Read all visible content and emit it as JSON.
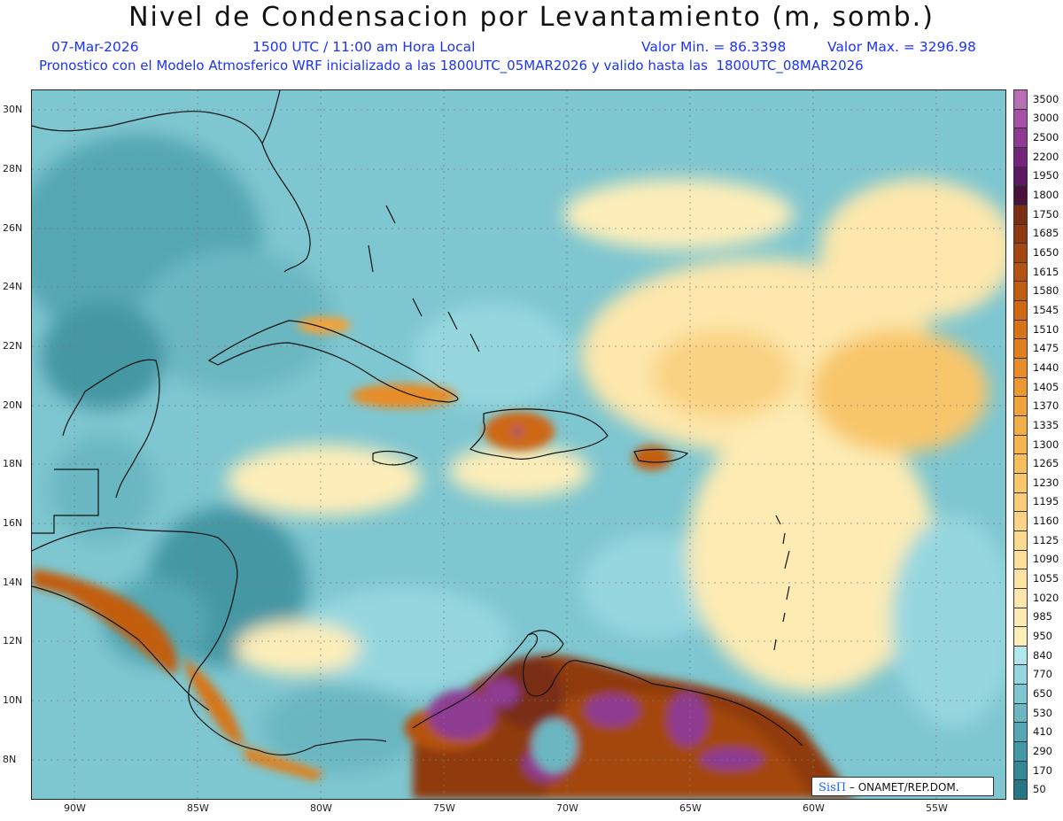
{
  "title": "Nivel de Condensacion por Levantamiento (m, somb.)",
  "subtitle": {
    "date": "07-Mar-2026",
    "time": "1500 UTC / 11:00 am Hora Local",
    "vmin": "Valor Min. = 86.3398",
    "vmax": "Valor Max. = 3296.98",
    "model": "Pronostico con el Modelo Atmosferico WRF inicializado a las 1800UTC_05MAR2026 y valido hasta las  1800UTC_08MAR2026"
  },
  "map": {
    "lat_labels": [
      "30N",
      "28N",
      "26N",
      "24N",
      "22N",
      "20N",
      "18N",
      "16N",
      "14N",
      "12N",
      "10N",
      "8N"
    ],
    "lon_labels": [
      "90W",
      "85W",
      "80W",
      "75W",
      "70W",
      "65W",
      "60W",
      "55W"
    ],
    "lon_range": [
      -92,
      -52.5
    ],
    "lat_range": [
      6.7,
      30.8
    ]
  },
  "colorbar": {
    "levels": [
      "3500",
      "3000",
      "2500",
      "2200",
      "1950",
      "1800",
      "1750",
      "1685",
      "1650",
      "1615",
      "1580",
      "1545",
      "1510",
      "1475",
      "1440",
      "1405",
      "1370",
      "1335",
      "1300",
      "1265",
      "1230",
      "1195",
      "1160",
      "1125",
      "1090",
      "1055",
      "1020",
      "985",
      "950",
      "840",
      "770",
      "650",
      "530",
      "410",
      "290",
      "170",
      "50"
    ],
    "colors": [
      "#b86db5",
      "#a552a8",
      "#8e3a92",
      "#74237a",
      "#5c1860",
      "#4a1238",
      "#7a2e12",
      "#8f3a10",
      "#a3460f",
      "#b5520f",
      "#c25d10",
      "#ce6813",
      "#d87418",
      "#e0801f",
      "#e78c27",
      "#ec9830",
      "#f0a33b",
      "#f3ad46",
      "#f5b652",
      "#f7be5e",
      "#f8c66b",
      "#f9cd77",
      "#fad384",
      "#fbd98f",
      "#fcde99",
      "#fce3a3",
      "#fde7ac",
      "#fdebb3",
      "#fdeeb9",
      "#b2e6ec",
      "#96d7df",
      "#7ec6d0",
      "#6ab7c2",
      "#55a7b3",
      "#4497a4",
      "#348795",
      "#257786"
    ]
  },
  "credit": {
    "sis": "SisΠ",
    "text": " – ONAMET/REP.DOM."
  }
}
